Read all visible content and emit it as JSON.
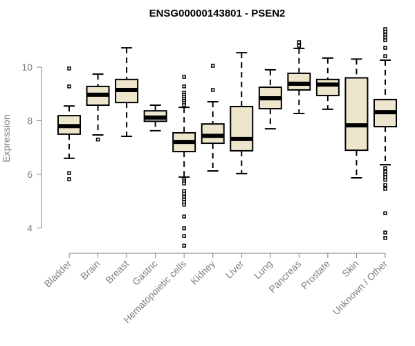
{
  "chart_data": {
    "type": "boxplot",
    "title": "ENSG00000143801 - PSEN2",
    "xlabel": "",
    "ylabel": "Expression",
    "ylim": [
      3,
      11.6
    ],
    "yticks": [
      4,
      6,
      8,
      10
    ],
    "box_fill": "#ede6cd",
    "axis_color": "#7f7f7f",
    "grid": false,
    "categories": [
      "Bladder",
      "Brain",
      "Breast",
      "Gastric",
      "Hematopoietic cells",
      "Kidney",
      "Liver",
      "Lung",
      "Pancreas",
      "Prostate",
      "Skin",
      "Unknown / Other"
    ],
    "boxes": [
      {
        "whislo": 6.6,
        "q1": 7.5,
        "med": 7.8,
        "q3": 8.19,
        "whishi": 8.55,
        "outliers": [
          9.95,
          9.28,
          6.05,
          5.82
        ]
      },
      {
        "whislo": 7.47,
        "q1": 8.58,
        "med": 8.97,
        "q3": 9.28,
        "whishi": 9.74,
        "outliers": [
          7.3
        ]
      },
      {
        "whislo": 7.42,
        "q1": 8.68,
        "med": 9.15,
        "q3": 9.54,
        "whishi": 10.72,
        "outliers": []
      },
      {
        "whislo": 7.63,
        "q1": 7.98,
        "med": 8.12,
        "q3": 8.37,
        "whishi": 8.58,
        "outliers": []
      },
      {
        "whislo": 5.9,
        "q1": 6.85,
        "med": 7.21,
        "q3": 7.55,
        "whishi": 8.5,
        "outliers": [
          9.64,
          9.28,
          9.05,
          8.97,
          8.89,
          8.81,
          8.74,
          8.66,
          8.58,
          5.82,
          5.74,
          5.66,
          5.38,
          5.28,
          5.17,
          5.07,
          4.97,
          4.87,
          4.43,
          3.99,
          3.7,
          3.34
        ]
      },
      {
        "whislo": 6.13,
        "q1": 7.16,
        "med": 7.44,
        "q3": 7.88,
        "whishi": 8.71,
        "outliers": [
          10.05,
          9.15
        ]
      },
      {
        "whislo": 6.03,
        "q1": 6.88,
        "med": 7.32,
        "q3": 8.53,
        "whishi": 10.54,
        "outliers": []
      },
      {
        "whislo": 7.7,
        "q1": 8.45,
        "med": 8.84,
        "q3": 9.25,
        "whishi": 9.9,
        "outliers": []
      },
      {
        "whislo": 8.27,
        "q1": 9.15,
        "med": 9.38,
        "q3": 9.77,
        "whishi": 10.7,
        "outliers": [
          10.93,
          10.8
        ]
      },
      {
        "whislo": 8.43,
        "q1": 8.94,
        "med": 9.35,
        "q3": 9.54,
        "whishi": 10.34,
        "outliers": []
      },
      {
        "whislo": 5.87,
        "q1": 6.9,
        "med": 7.83,
        "q3": 9.6,
        "whishi": 10.3,
        "outliers": []
      },
      {
        "whislo": 6.36,
        "q1": 7.78,
        "med": 8.32,
        "q3": 8.79,
        "whishi": 10.26,
        "outliers": [
          11.42,
          11.32,
          11.21,
          11.11,
          11.0,
          10.72,
          10.41,
          6.23,
          6.1,
          6.0,
          5.9,
          5.8,
          5.6,
          5.46,
          4.55,
          3.83,
          3.63
        ]
      }
    ]
  }
}
